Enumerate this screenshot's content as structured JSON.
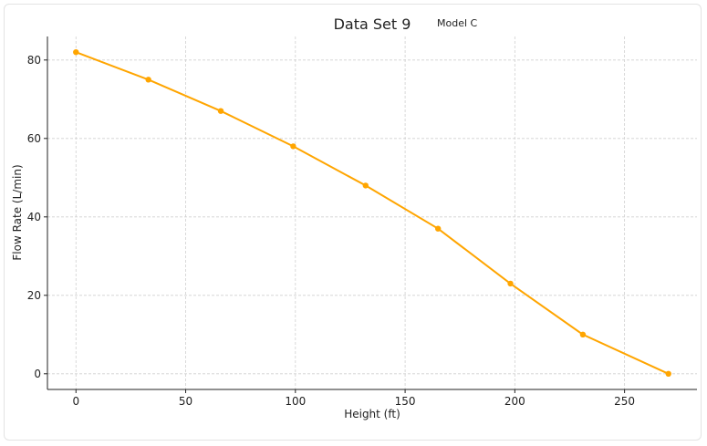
{
  "chart_data": {
    "type": "line",
    "title": "Data Set 9",
    "subtitle": "Model C",
    "xlabel": "Height (ft)",
    "ylabel": "Flow Rate (L/min)",
    "x": [
      0,
      33,
      66,
      99,
      132,
      165,
      198,
      231,
      270
    ],
    "series": [
      {
        "values": [
          82,
          75,
          67,
          58,
          48,
          37,
          23,
          10,
          0
        ]
      }
    ],
    "xlim": [
      -13,
      283
    ],
    "ylim": [
      -4,
      86
    ],
    "xticks": [
      0,
      50,
      100,
      150,
      200,
      250
    ],
    "yticks": [
      0,
      20,
      40,
      60,
      80
    ],
    "grid": true,
    "line_color": "#FFA500"
  }
}
